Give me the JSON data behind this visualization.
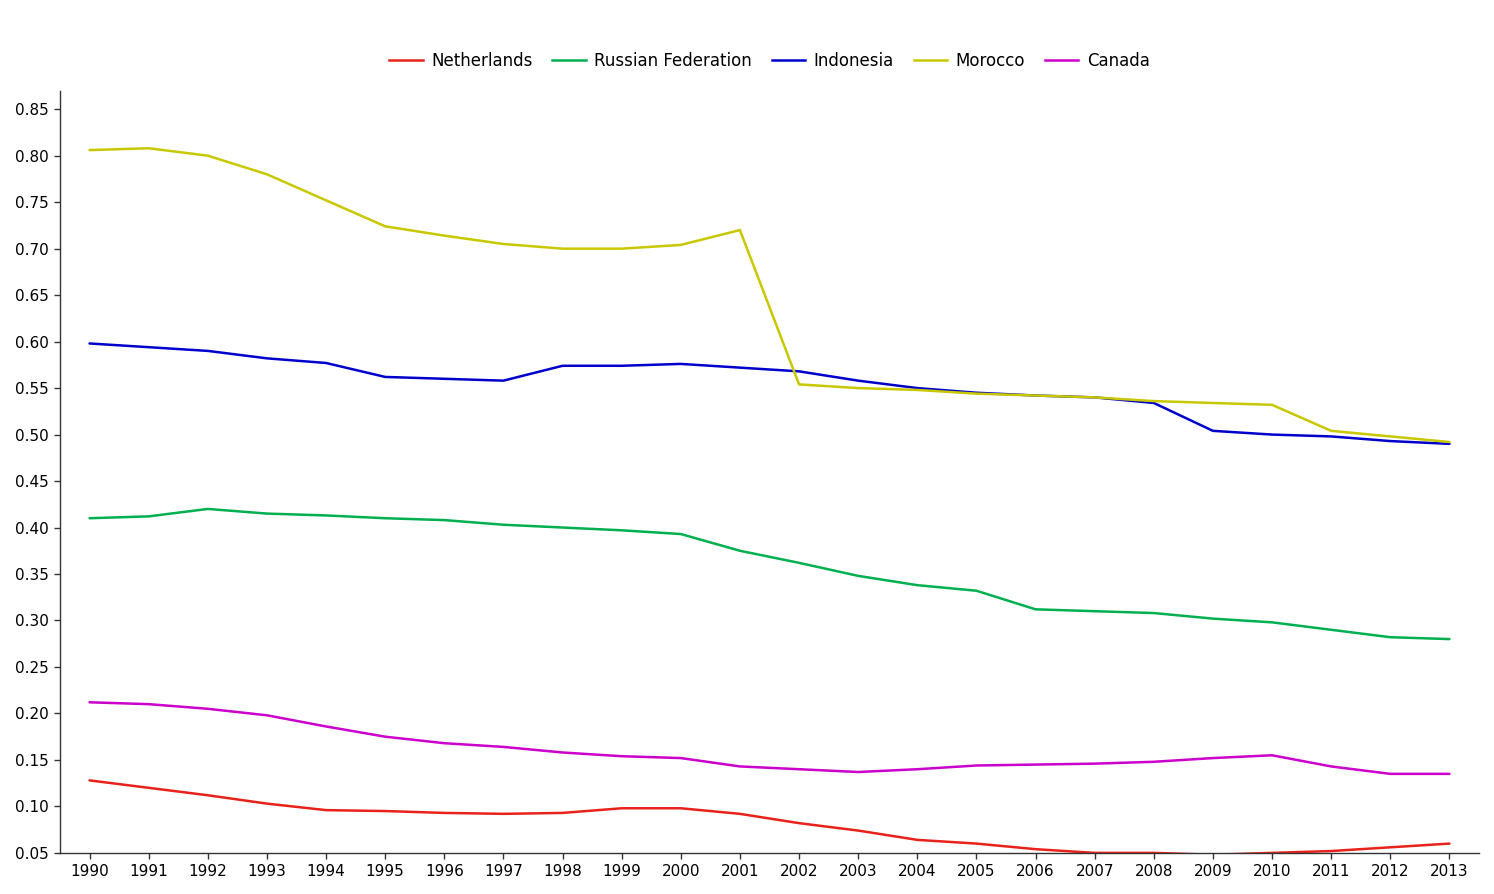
{
  "years": [
    1990,
    1991,
    1992,
    1993,
    1994,
    1995,
    1996,
    1997,
    1998,
    1999,
    2000,
    2001,
    2002,
    2003,
    2004,
    2005,
    2006,
    2007,
    2008,
    2009,
    2010,
    2011,
    2012,
    2013
  ],
  "series": {
    "Netherlands": {
      "color": "#e8221b",
      "values": [
        0.128,
        0.12,
        0.112,
        0.103,
        0.096,
        0.095,
        0.093,
        0.092,
        0.093,
        0.098,
        0.098,
        0.092,
        0.082,
        0.074,
        0.064,
        0.06,
        0.054,
        0.05,
        0.05,
        0.048,
        0.05,
        0.052,
        0.056,
        0.06
      ]
    },
    "Russian Federation": {
      "color": "#00b050",
      "values": [
        0.41,
        0.412,
        0.42,
        0.415,
        0.413,
        0.41,
        0.408,
        0.403,
        0.4,
        0.397,
        0.393,
        0.375,
        0.362,
        0.348,
        0.338,
        0.332,
        0.312,
        0.31,
        0.308,
        0.302,
        0.298,
        0.29,
        0.282,
        0.28
      ]
    },
    "Indonesia": {
      "color": "#0000cd",
      "values": [
        0.598,
        0.594,
        0.59,
        0.582,
        0.577,
        0.562,
        0.56,
        0.558,
        0.574,
        0.574,
        0.576,
        0.572,
        0.568,
        0.558,
        0.55,
        0.545,
        0.542,
        0.54,
        0.534,
        0.504,
        0.5,
        0.498,
        0.493,
        0.49
      ]
    },
    "Morocco": {
      "color": "#c8c800",
      "values": [
        0.806,
        0.808,
        0.8,
        0.78,
        0.752,
        0.724,
        0.714,
        0.705,
        0.7,
        0.7,
        0.704,
        0.72,
        0.554,
        0.55,
        0.548,
        0.544,
        0.542,
        0.54,
        0.536,
        0.534,
        0.532,
        0.504,
        0.498,
        0.492
      ]
    },
    "Canada": {
      "color": "#cc00cc",
      "values": [
        0.212,
        0.21,
        0.205,
        0.198,
        0.186,
        0.175,
        0.168,
        0.164,
        0.158,
        0.154,
        0.152,
        0.143,
        0.14,
        0.137,
        0.14,
        0.144,
        0.145,
        0.146,
        0.148,
        0.152,
        0.155,
        0.143,
        0.135,
        0.135
      ]
    }
  },
  "ylim": [
    0.05,
    0.87
  ],
  "yticks": [
    0.05,
    0.1,
    0.15,
    0.2,
    0.25,
    0.3,
    0.35,
    0.4,
    0.45,
    0.5,
    0.55,
    0.6,
    0.65,
    0.7,
    0.75,
    0.8,
    0.85
  ],
  "legend_order": [
    "Netherlands",
    "Russian Federation",
    "Indonesia",
    "Morocco",
    "Canada"
  ],
  "background_color": "#ffffff",
  "linewidth": 1.8,
  "tick_fontsize": 11,
  "legend_fontsize": 12,
  "spine_color": "#333333",
  "tick_color": "#333333"
}
